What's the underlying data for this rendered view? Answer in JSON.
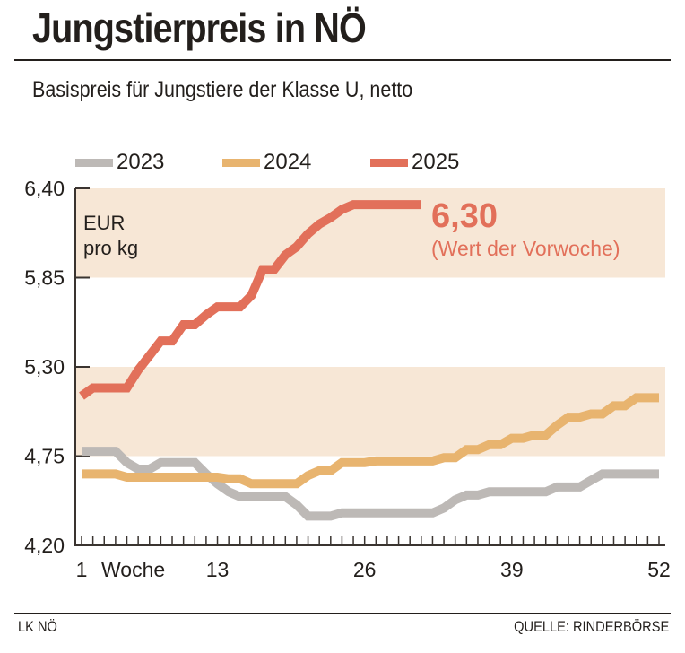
{
  "header": {
    "title": "Jungstierpreis in NÖ",
    "subtitle": "Basispreis für Jungstiere der Klasse U, netto"
  },
  "footer": {
    "left": "LK NÖ",
    "right": "QUELLE: RINDERBÖRSE"
  },
  "colors": {
    "2023": "#bdb9b6",
    "2024": "#e8b46f",
    "2025": "#e2705a",
    "band": "#f7e7d6",
    "axis": "#3a3430"
  },
  "chart_data": {
    "type": "line",
    "title": "Jungstierpreis in NÖ",
    "subtitle": "Basispreis für Jungstiere der Klasse U, netto",
    "xlabel": "Woche",
    "ylabel": "EUR pro kg",
    "ylabel_lines": [
      "EUR",
      "pro kg"
    ],
    "xlim": [
      1,
      52
    ],
    "ylim": [
      4.2,
      6.4
    ],
    "x_ticks": [
      1,
      13,
      26,
      39,
      52
    ],
    "x_tick_labels": [
      "1",
      "13",
      "26",
      "39",
      "52"
    ],
    "y_ticks": [
      4.2,
      4.75,
      5.3,
      5.85,
      6.4
    ],
    "y_tick_labels": [
      "4,20",
      "4,75",
      "5,30",
      "5,85",
      "6,40"
    ],
    "shaded_bands": [
      [
        4.75,
        5.3
      ],
      [
        5.85,
        6.4
      ]
    ],
    "grid": false,
    "legend_position": "top",
    "legend": [
      "2023",
      "2024",
      "2025"
    ],
    "annotation": {
      "value": "6,30",
      "note": "(Wert der Vorwoche)"
    },
    "series": [
      {
        "name": "2023",
        "x": [
          1,
          2,
          3,
          4,
          5,
          6,
          7,
          8,
          9,
          10,
          11,
          12,
          13,
          14,
          15,
          16,
          17,
          18,
          19,
          20,
          21,
          22,
          23,
          24,
          25,
          26,
          27,
          28,
          29,
          30,
          31,
          32,
          33,
          34,
          35,
          36,
          37,
          38,
          39,
          40,
          41,
          42,
          43,
          44,
          45,
          46,
          47,
          48,
          49,
          50,
          51,
          52
        ],
        "values": [
          4.78,
          4.78,
          4.78,
          4.78,
          4.71,
          4.67,
          4.67,
          4.71,
          4.71,
          4.71,
          4.71,
          4.64,
          4.58,
          4.53,
          4.5,
          4.5,
          4.5,
          4.5,
          4.5,
          4.45,
          4.38,
          4.38,
          4.38,
          4.4,
          4.4,
          4.4,
          4.4,
          4.4,
          4.4,
          4.4,
          4.4,
          4.4,
          4.43,
          4.48,
          4.51,
          4.51,
          4.53,
          4.53,
          4.53,
          4.53,
          4.53,
          4.53,
          4.56,
          4.56,
          4.56,
          4.6,
          4.64,
          4.64,
          4.64,
          4.64,
          4.64,
          4.64
        ]
      },
      {
        "name": "2024",
        "x": [
          1,
          2,
          3,
          4,
          5,
          6,
          7,
          8,
          9,
          10,
          11,
          12,
          13,
          14,
          15,
          16,
          17,
          18,
          19,
          20,
          21,
          22,
          23,
          24,
          25,
          26,
          27,
          28,
          29,
          30,
          31,
          32,
          33,
          34,
          35,
          36,
          37,
          38,
          39,
          40,
          41,
          42,
          43,
          44,
          45,
          46,
          47,
          48,
          49,
          50,
          51,
          52
        ],
        "values": [
          4.64,
          4.64,
          4.64,
          4.64,
          4.62,
          4.62,
          4.62,
          4.62,
          4.62,
          4.62,
          4.62,
          4.62,
          4.62,
          4.61,
          4.61,
          4.58,
          4.58,
          4.58,
          4.58,
          4.58,
          4.63,
          4.66,
          4.66,
          4.71,
          4.71,
          4.71,
          4.72,
          4.72,
          4.72,
          4.72,
          4.72,
          4.72,
          4.74,
          4.74,
          4.79,
          4.79,
          4.82,
          4.82,
          4.86,
          4.86,
          4.88,
          4.88,
          4.94,
          4.99,
          4.99,
          5.01,
          5.01,
          5.06,
          5.06,
          5.11,
          5.11,
          5.11
        ]
      },
      {
        "name": "2025",
        "x": [
          1,
          2,
          3,
          4,
          5,
          6,
          7,
          8,
          9,
          10,
          11,
          12,
          13,
          14,
          15,
          16,
          17,
          18,
          19,
          20,
          21,
          22,
          23,
          24,
          25,
          26,
          27,
          28,
          29,
          30,
          31
        ],
        "values": [
          5.12,
          5.17,
          5.17,
          5.17,
          5.17,
          5.28,
          5.37,
          5.46,
          5.46,
          5.56,
          5.56,
          5.62,
          5.67,
          5.67,
          5.67,
          5.74,
          5.9,
          5.9,
          5.99,
          6.04,
          6.12,
          6.18,
          6.22,
          6.27,
          6.3,
          6.3,
          6.3,
          6.3,
          6.3,
          6.3,
          6.3
        ]
      }
    ]
  }
}
